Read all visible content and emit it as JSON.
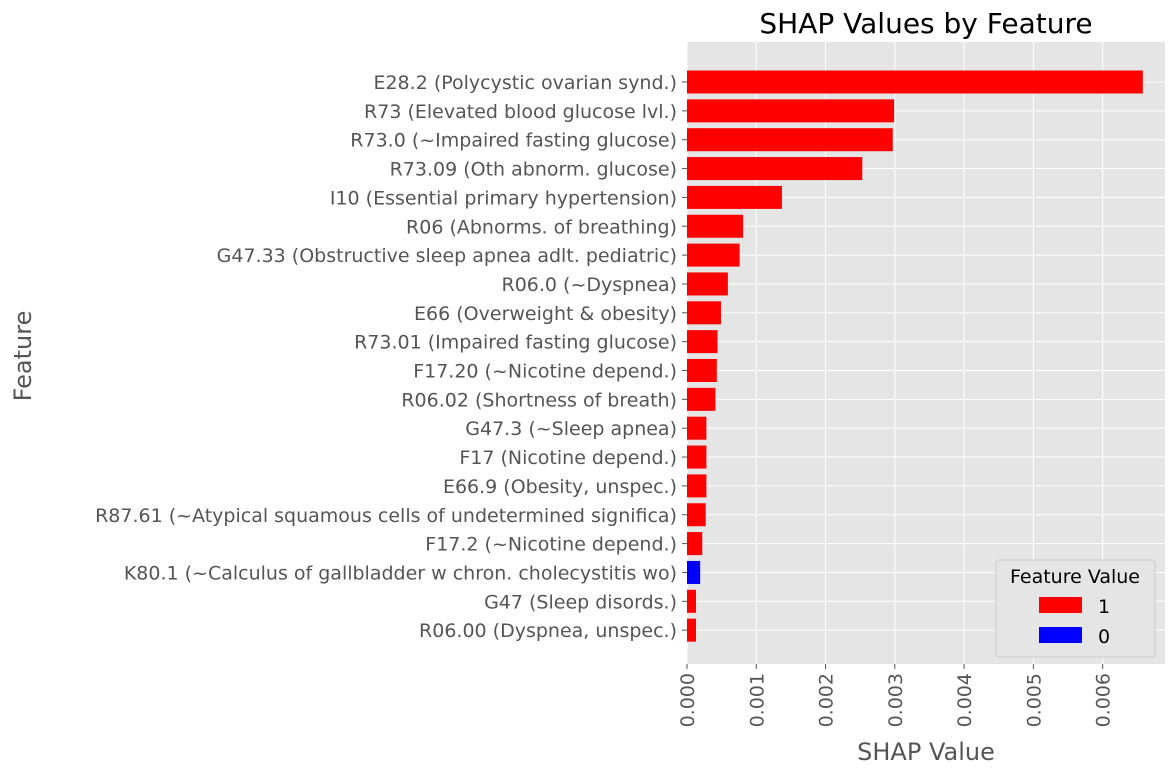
{
  "chart_data": {
    "type": "bar",
    "orientation": "horizontal",
    "title": "SHAP Values by Feature",
    "xlabel": "SHAP Value",
    "ylabel": "Feature",
    "xlim": [
      0,
      0.0069
    ],
    "xticks": [
      "0.000",
      "0.001",
      "0.002",
      "0.003",
      "0.004",
      "0.005",
      "0.006"
    ],
    "grid": true,
    "legend": {
      "title": "Feature Value",
      "placement": "lower-right",
      "entries": [
        {
          "label": "1",
          "color": "#ff0000"
        },
        {
          "label": "0",
          "color": "#0000ff"
        }
      ]
    },
    "colors": {
      "background": "#e5e5e5",
      "grid": "#ffffff",
      "text": "#555555",
      "title": "#000000"
    },
    "categories": [
      "E28.2 (Polycystic ovarian synd.)",
      "R73 (Elevated blood glucose lvl.)",
      "R73.0 (~Impaired fasting glucose)",
      "R73.09 (Oth abnorm. glucose)",
      "I10 (Essential primary hypertension)",
      "R06 (Abnorms. of breathing)",
      "G47.33 (Obstructive sleep apnea adlt. pediatric)",
      "R06.0 (~Dyspnea)",
      "E66 (Overweight & obesity)",
      "R73.01 (Impaired fasting glucose)",
      "F17.20 (~Nicotine depend.)",
      "R06.02 (Shortness of breath)",
      "G47.3 (~Sleep apnea)",
      "F17 (Nicotine depend.)",
      "E66.9 (Obesity, unspec.)",
      "R87.61 (~Atypical squamous cells of undetermined significa)",
      "F17.2 (~Nicotine depend.)",
      "K80.1 (~Calculus of gallbladder w chron. cholecystitis wo)",
      "G47 (Sleep disords.)",
      "R06.00 (Dyspnea, unspec.)"
    ],
    "values": [
      0.00658,
      0.00299,
      0.00297,
      0.00253,
      0.00137,
      0.00081,
      0.00076,
      0.00059,
      0.00049,
      0.00044,
      0.00043,
      0.00041,
      0.00028,
      0.00028,
      0.00028,
      0.00027,
      0.00022,
      0.00019,
      0.00013,
      0.00013
    ],
    "feature_values": [
      "1",
      "1",
      "1",
      "1",
      "1",
      "1",
      "1",
      "1",
      "1",
      "1",
      "1",
      "1",
      "1",
      "1",
      "1",
      "1",
      "1",
      "0",
      "1",
      "1"
    ]
  }
}
